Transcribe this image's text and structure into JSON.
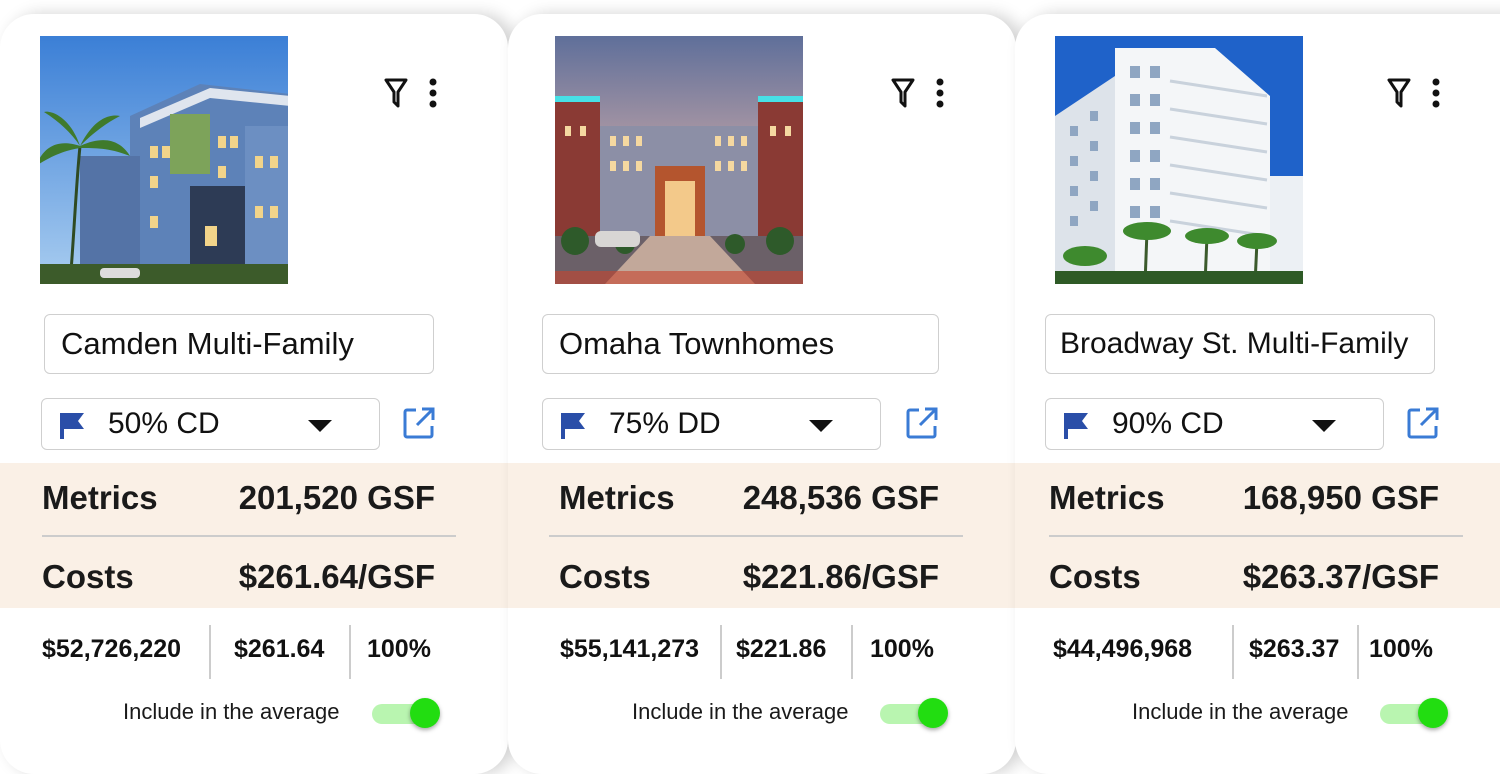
{
  "colors": {
    "band": "#faf0e6",
    "flag": "#2a4ea8",
    "toggle_on": "#22dd11",
    "toggle_track": "#b9f5b0"
  },
  "cards": [
    {
      "name": "Camden Multi-Family",
      "phase": "50% CD",
      "metrics_label": "Metrics",
      "metrics_value": "201,520 GSF",
      "costs_label": "Costs",
      "costs_value": "$261.64/GSF",
      "total": "$52,726,220",
      "per_gsf": "$261.64",
      "percent": "100%",
      "include_label": "Include in the average",
      "include_on": true
    },
    {
      "name": "Omaha Townhomes",
      "phase": "75% DD",
      "metrics_label": "Metrics",
      "metrics_value": "248,536 GSF",
      "costs_label": "Costs",
      "costs_value": "$221.86/GSF",
      "total": "$55,141,273",
      "per_gsf": "$221.86",
      "percent": "100%",
      "include_label": "Include in the average",
      "include_on": true
    },
    {
      "name": "Broadway St. Multi-Family",
      "phase": "90% CD",
      "metrics_label": "Metrics",
      "metrics_value": "168,950 GSF",
      "costs_label": "Costs",
      "costs_value": "$263.37/GSF",
      "total": "$44,496,968",
      "per_gsf": "$263.37",
      "percent": "100%",
      "include_label": "Include in the average",
      "include_on": true
    }
  ]
}
